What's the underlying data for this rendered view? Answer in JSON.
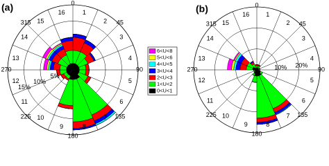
{
  "chart_data": [
    {
      "type": "wind_rose",
      "panel_label": "(a)",
      "angle_labels": [
        0,
        45,
        90,
        135,
        180,
        225,
        270,
        315
      ],
      "categories": [
        "1",
        "2",
        "3",
        "4",
        "5",
        "6",
        "7",
        "8",
        "9",
        "10",
        "11",
        "12",
        "13",
        "14",
        "15",
        "16"
      ],
      "rlim": [
        0,
        20
      ],
      "rticks": [
        {
          "value": 5,
          "label": "5%"
        },
        {
          "value": 10,
          "label": "10%"
        },
        {
          "value": 15,
          "label": "15%"
        }
      ],
      "legend": true,
      "series": [
        {
          "name": "0<U<1",
          "color": "#000000",
          "values": [
            2,
            2,
            2,
            2,
            2,
            2,
            3,
            3,
            3,
            2,
            2,
            2,
            2,
            2,
            2,
            2
          ]
        },
        {
          "name": "1<U<2",
          "color": "#00ff00",
          "values": [
            4,
            4,
            3,
            2,
            2,
            3,
            12,
            13,
            8,
            1,
            1,
            2,
            2,
            3,
            3,
            4
          ]
        },
        {
          "name": "2<U<3",
          "color": "#ff0000",
          "values": [
            4,
            3,
            2,
            1,
            1,
            1,
            2,
            2,
            1,
            0.5,
            1,
            1,
            2,
            2,
            2,
            3
          ]
        },
        {
          "name": "3<U<4",
          "color": "#0000ff",
          "values": [
            1,
            1,
            0.5,
            0,
            0,
            0,
            1,
            0.5,
            0,
            0,
            0,
            0,
            1,
            1,
            1,
            1
          ]
        },
        {
          "name": "4<U<5",
          "color": "#00ffff",
          "values": [
            0,
            0,
            0,
            0,
            0,
            0,
            0.5,
            0,
            0,
            0,
            0,
            0,
            0.5,
            0.5,
            0.5,
            0
          ]
        },
        {
          "name": "5<U<6",
          "color": "#ffff00",
          "values": [
            0,
            0,
            0,
            0,
            0,
            0,
            0,
            0,
            0,
            0,
            0,
            0,
            0.5,
            0.5,
            0.3,
            0
          ]
        },
        {
          "name": "6<U<8",
          "color": "#ff00ff",
          "values": [
            0,
            0,
            0,
            0,
            0,
            0,
            0,
            0,
            0,
            0,
            0,
            0,
            1,
            1,
            0.2,
            0
          ]
        }
      ]
    },
    {
      "type": "wind_rose",
      "panel_label": "(b)",
      "angle_labels": [
        0,
        45,
        90,
        135,
        180,
        225,
        270,
        315
      ],
      "categories": [
        "1",
        "2",
        "3",
        "4",
        "5",
        "6",
        "7",
        "8",
        "9",
        "10",
        "11",
        "12",
        "13",
        "14",
        "15",
        "16"
      ],
      "rlim": [
        0,
        30
      ],
      "rticks": [
        {
          "value": 10,
          "label": "10%"
        },
        {
          "value": 20,
          "label": "20%"
        }
      ],
      "legend": false,
      "series": [
        {
          "color": "#000000",
          "values": [
            1,
            1,
            1,
            1,
            1,
            2,
            3,
            3,
            3,
            2,
            1,
            1,
            2,
            2,
            1,
            1
          ]
        },
        {
          "color": "#00ff00",
          "values": [
            1,
            1,
            0.5,
            0.5,
            0.5,
            1,
            17,
            20,
            3,
            1,
            0.5,
            0.5,
            3,
            3,
            2,
            1
          ]
        },
        {
          "color": "#ff0000",
          "values": [
            0.5,
            0.5,
            0,
            0,
            0,
            0,
            2,
            2,
            0,
            0,
            0,
            0,
            3,
            3,
            1,
            0.5
          ]
        },
        {
          "color": "#0000ff",
          "values": [
            0,
            0,
            0,
            0,
            0,
            0,
            1,
            1,
            0,
            0,
            0,
            0,
            2,
            2,
            0.5,
            0
          ]
        },
        {
          "color": "#00ffff",
          "values": [
            0,
            0,
            0,
            0,
            0,
            0,
            0.3,
            0,
            0,
            0,
            0,
            0,
            1,
            1,
            0,
            0
          ]
        },
        {
          "color": "#ffff00",
          "values": [
            0,
            0,
            0,
            0,
            0,
            0,
            0,
            0,
            0,
            0,
            0,
            0,
            1,
            0.5,
            0,
            0
          ]
        },
        {
          "color": "#ff00ff",
          "values": [
            0,
            0,
            0,
            0,
            0,
            0,
            0,
            0,
            0,
            0,
            0,
            0,
            2,
            0.5,
            0,
            0
          ]
        }
      ]
    }
  ]
}
